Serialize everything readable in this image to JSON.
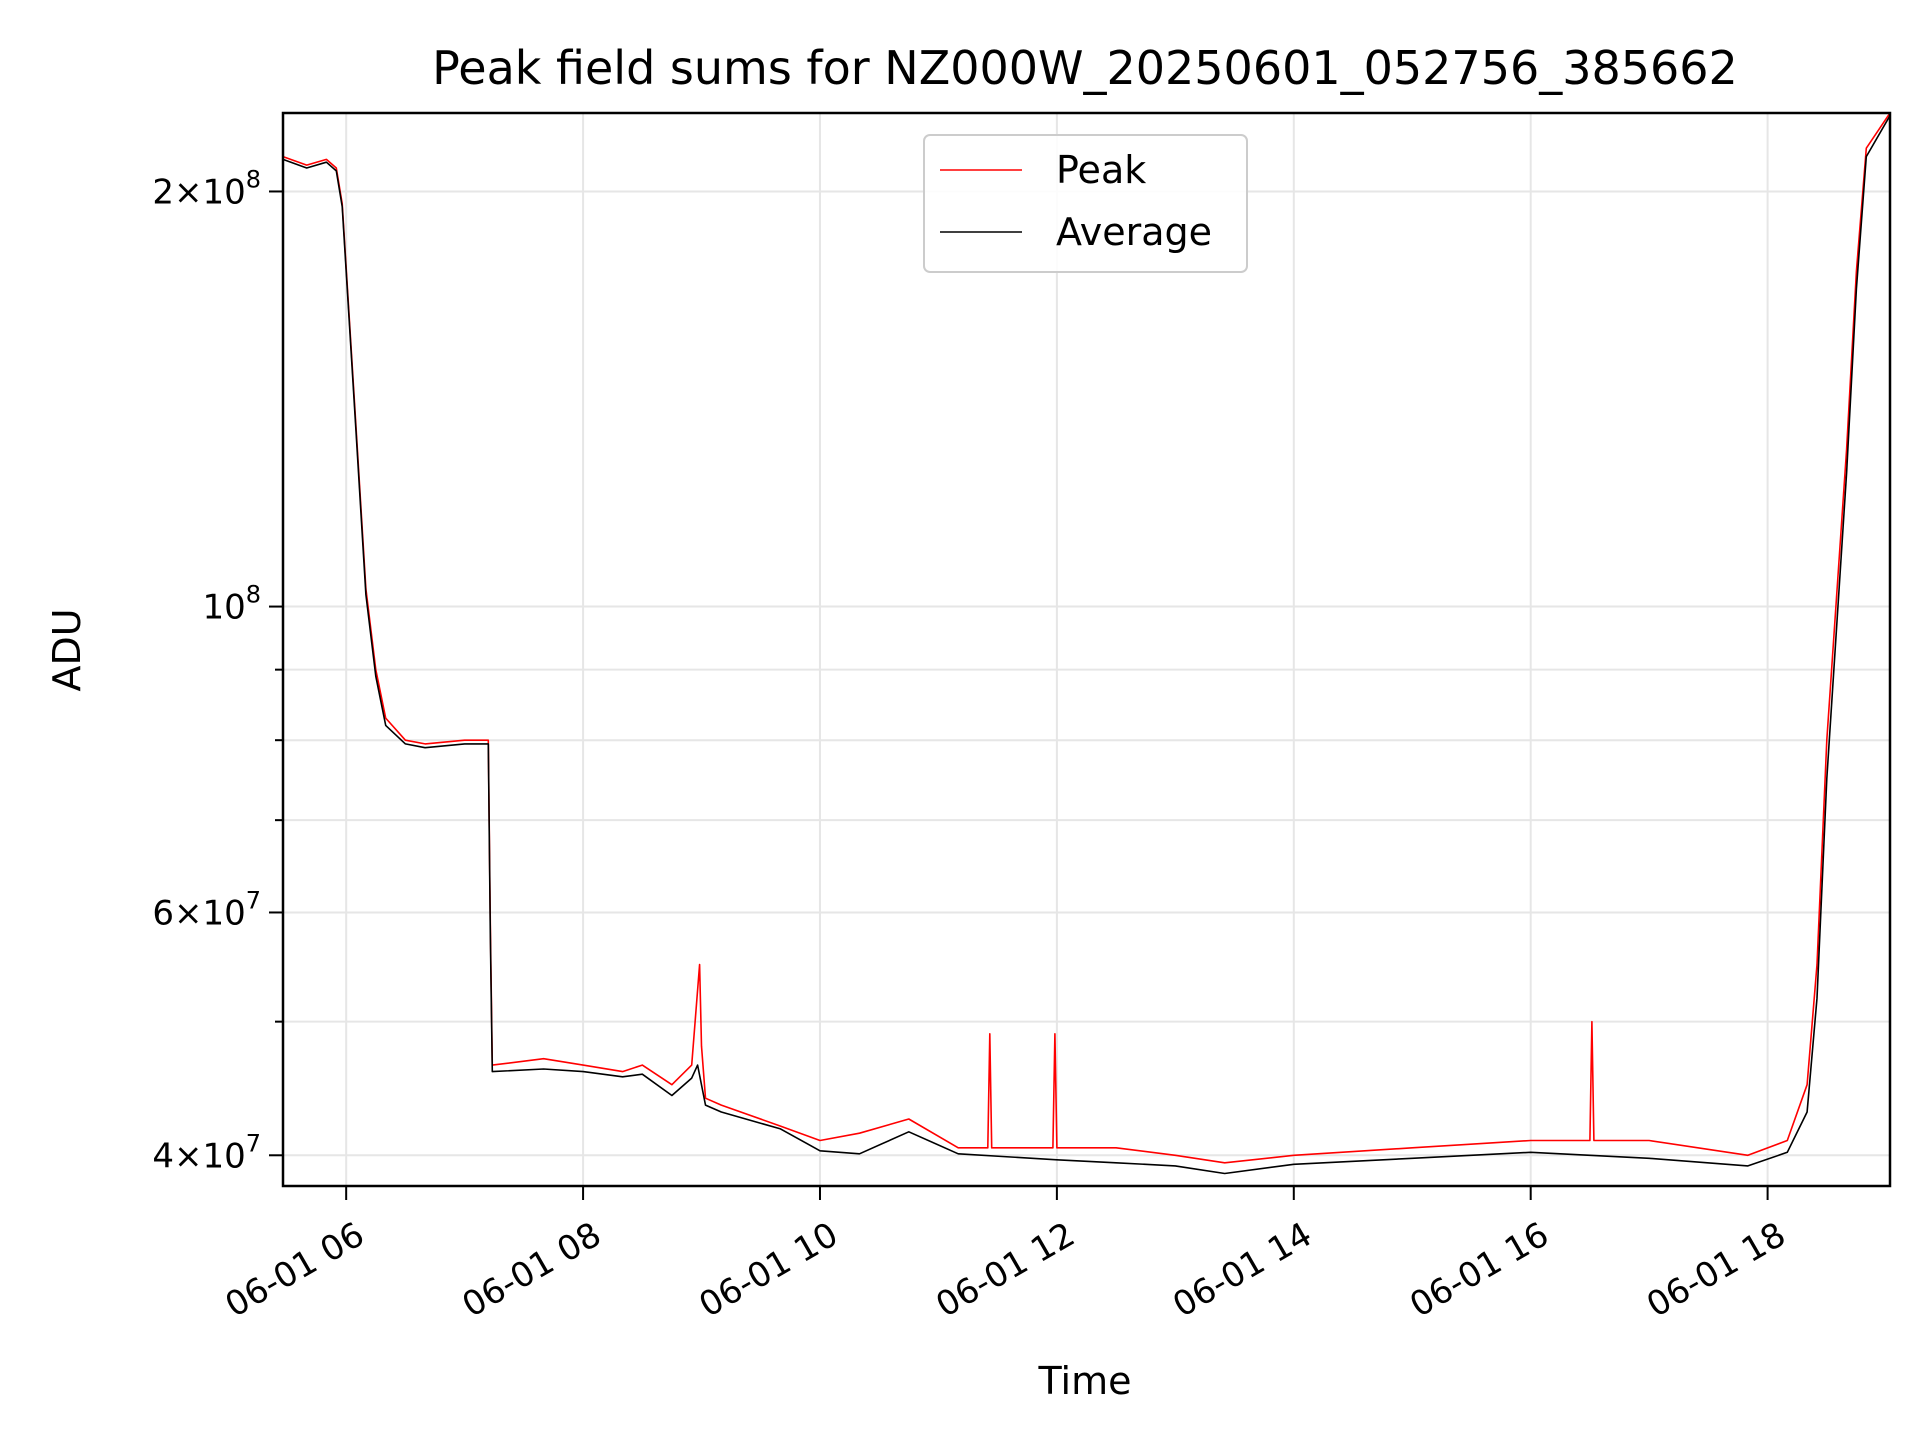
{
  "chart_data": {
    "type": "line",
    "title": "Peak field sums for NZ000W_20250601_052756_385662",
    "xlabel": "Time",
    "ylabel": "ADU",
    "yscale": "log",
    "xlim": [
      "2025-06-01 05:28",
      "2025-06-01 19:02"
    ],
    "ylim": [
      38000000,
      228000000
    ],
    "grid": true,
    "legend": "top-center",
    "x_ticks": [
      {
        "value": "2025-06-01 06:00",
        "label": "06-01 06"
      },
      {
        "value": "2025-06-01 08:00",
        "label": "06-01 08"
      },
      {
        "value": "2025-06-01 10:00",
        "label": "06-01 10"
      },
      {
        "value": "2025-06-01 12:00",
        "label": "06-01 12"
      },
      {
        "value": "2025-06-01 14:00",
        "label": "06-01 14"
      },
      {
        "value": "2025-06-01 16:00",
        "label": "06-01 16"
      },
      {
        "value": "2025-06-01 18:00",
        "label": "06-01 18"
      }
    ],
    "y_ticks_major": [
      {
        "value": 40000000,
        "base": "4",
        "exp": "7"
      },
      {
        "value": 60000000,
        "base": "6",
        "exp": "7"
      },
      {
        "value": 100000000,
        "base": "",
        "exp": "8"
      },
      {
        "value": 200000000,
        "base": "2",
        "exp": "8"
      }
    ],
    "y_ticks_minor": [
      50000000,
      70000000,
      80000000,
      90000000
    ],
    "series": [
      {
        "name": "Peak",
        "color": "#ff0000",
        "x": [
          "2025-06-01 05:28",
          "2025-06-01 05:40",
          "2025-06-01 05:50",
          "2025-06-01 05:55",
          "2025-06-01 05:58",
          "2025-06-01 06:05",
          "2025-06-01 06:10",
          "2025-06-01 06:15",
          "2025-06-01 06:20",
          "2025-06-01 06:30",
          "2025-06-01 06:40",
          "2025-06-01 07:00",
          "2025-06-01 07:12",
          "2025-06-01 07:13",
          "2025-06-01 07:14",
          "2025-06-01 07:40",
          "2025-06-01 08:00",
          "2025-06-01 08:20",
          "2025-06-01 08:30",
          "2025-06-01 08:45",
          "2025-06-01 08:55",
          "2025-06-01 08:59",
          "2025-06-01 09:00",
          "2025-06-01 09:02",
          "2025-06-01 09:10",
          "2025-06-01 09:40",
          "2025-06-01 10:00",
          "2025-06-01 10:20",
          "2025-06-01 10:45",
          "2025-06-01 11:10",
          "2025-06-01 11:25",
          "2025-06-01 11:26",
          "2025-06-01 11:27",
          "2025-06-01 11:58",
          "2025-06-01 11:59",
          "2025-06-01 12:00",
          "2025-06-01 12:30",
          "2025-06-01 13:00",
          "2025-06-01 13:25",
          "2025-06-01 14:00",
          "2025-06-01 15:00",
          "2025-06-01 16:00",
          "2025-06-01 16:30",
          "2025-06-01 16:31",
          "2025-06-01 16:32",
          "2025-06-01 17:00",
          "2025-06-01 17:50",
          "2025-06-01 18:10",
          "2025-06-01 18:20",
          "2025-06-01 18:25",
          "2025-06-01 18:30",
          "2025-06-01 18:40",
          "2025-06-01 18:45",
          "2025-06-01 18:50",
          "2025-06-01 19:02"
        ],
        "y": [
          212000000,
          209000000,
          211000000,
          208000000,
          196000000,
          135000000,
          103000000,
          90000000,
          83000000,
          80000000,
          79500000,
          80000000,
          80000000,
          59000000,
          46500000,
          47000000,
          46500000,
          46000000,
          46500000,
          45000000,
          46500000,
          55000000,
          48000000,
          44000000,
          43500000,
          42000000,
          41000000,
          41500000,
          42500000,
          40500000,
          40500000,
          49000000,
          40500000,
          40500000,
          49000000,
          40500000,
          40500000,
          40000000,
          39500000,
          40000000,
          40500000,
          41000000,
          41000000,
          50000000,
          41000000,
          41000000,
          40000000,
          41000000,
          45000000,
          55000000,
          80000000,
          130000000,
          175000000,
          215000000,
          228000000
        ]
      },
      {
        "name": "Average",
        "color": "#000000",
        "x": [
          "2025-06-01 05:28",
          "2025-06-01 05:40",
          "2025-06-01 05:50",
          "2025-06-01 05:55",
          "2025-06-01 05:58",
          "2025-06-01 06:05",
          "2025-06-01 06:10",
          "2025-06-01 06:15",
          "2025-06-01 06:20",
          "2025-06-01 06:30",
          "2025-06-01 06:40",
          "2025-06-01 07:00",
          "2025-06-01 07:12",
          "2025-06-01 07:13",
          "2025-06-01 07:14",
          "2025-06-01 07:40",
          "2025-06-01 08:00",
          "2025-06-01 08:20",
          "2025-06-01 08:30",
          "2025-06-01 08:45",
          "2025-06-01 08:55",
          "2025-06-01 08:58",
          "2025-06-01 09:02",
          "2025-06-01 09:10",
          "2025-06-01 09:40",
          "2025-06-01 10:00",
          "2025-06-01 10:20",
          "2025-06-01 10:45",
          "2025-06-01 11:10",
          "2025-06-01 12:00",
          "2025-06-01 12:30",
          "2025-06-01 13:00",
          "2025-06-01 13:25",
          "2025-06-01 14:00",
          "2025-06-01 15:00",
          "2025-06-01 16:00",
          "2025-06-01 17:00",
          "2025-06-01 17:50",
          "2025-06-01 18:10",
          "2025-06-01 18:20",
          "2025-06-01 18:25",
          "2025-06-01 18:30",
          "2025-06-01 18:40",
          "2025-06-01 18:45",
          "2025-06-01 18:50",
          "2025-06-01 19:02"
        ],
        "y": [
          211000000,
          208000000,
          210000000,
          207000000,
          195000000,
          134000000,
          102000000,
          89000000,
          82000000,
          79500000,
          79000000,
          79500000,
          79500000,
          58000000,
          46000000,
          46200000,
          46000000,
          45600000,
          45800000,
          44200000,
          45500000,
          46500000,
          43500000,
          43000000,
          41800000,
          40300000,
          40100000,
          41600000,
          40100000,
          39700000,
          39500000,
          39300000,
          38800000,
          39400000,
          39800000,
          40200000,
          39800000,
          39300000,
          40200000,
          43000000,
          52000000,
          75000000,
          125000000,
          170000000,
          212000000,
          227000000
        ]
      }
    ]
  }
}
